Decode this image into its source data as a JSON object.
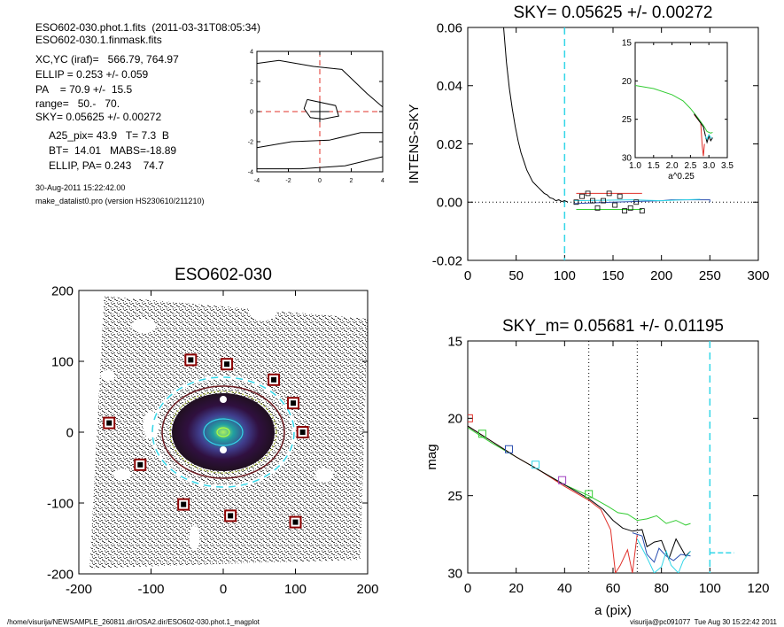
{
  "header": {
    "file_line": "ESO602-030.phot.1.fits  (2011-03-31T08:05:34)",
    "mask_line": "ESO602-030.1.finmask.fits",
    "params": [
      "XC,YC (iraf)=   566.79, 764.97",
      "ELLIP = 0.253 +/- 0.059",
      "PA    = 70.9 +/-  15.5",
      "range=   50.-   70.",
      "SKY= 0.05625 +/- 0.00272"
    ],
    "derived": [
      "A25_pix= 43.9   T= 7.3  B",
      "BT=  14.01   MABS=-18.89",
      "ELLIP, PA= 0.243    74.7"
    ],
    "date": "30-Aug-2011 15:22:42.00",
    "program": "make_datalist0.pro (version HS230610/211210)"
  },
  "footer": {
    "path": "/home/visurija/NEWSAMPLE_260811.dir/OSA2.dir/ESO602-030.phot.1_magplot",
    "user": "visurija@pc091077  Tue Aug 30 15:22:42 2011"
  },
  "colors": {
    "red": "#e0302a",
    "green": "#33cc33",
    "blue": "#2a4fb0",
    "cyan": "#33d6e8",
    "purple": "#a040c0",
    "black": "#000000"
  },
  "chart_data": [
    {
      "id": "contour",
      "type": "scatter",
      "title": "",
      "xlim": [
        -4,
        4
      ],
      "ylim": [
        -4,
        4
      ],
      "xticks": [
        "-4",
        "-2",
        "0",
        "2",
        "4"
      ],
      "yticks": [
        "-4",
        "-2",
        "0",
        "2",
        "4"
      ],
      "contours": [
        [
          [
            -0.8,
            0.8
          ],
          [
            1.0,
            0.4
          ],
          [
            1.2,
            -0.3
          ],
          [
            0.2,
            -0.5
          ],
          [
            -0.6,
            -0.4
          ],
          [
            -1.0,
            0.2
          ],
          [
            -0.8,
            0.8
          ]
        ],
        [
          [
            -4,
            3.2
          ],
          [
            -2.6,
            3.4
          ],
          [
            -0.4,
            3.0
          ],
          [
            1.4,
            2.8
          ],
          [
            3.0,
            1.2
          ],
          [
            4,
            0.3
          ]
        ],
        [
          [
            -4,
            -2.4
          ],
          [
            -1.8,
            -2.0
          ],
          [
            0.6,
            -1.9
          ],
          [
            2.6,
            -1.4
          ],
          [
            4,
            -1.4
          ]
        ],
        [
          [
            -4,
            -3.8
          ],
          [
            -1.2,
            -3.8
          ],
          [
            1.6,
            -3.6
          ],
          [
            4,
            -3.0
          ]
        ]
      ]
    },
    {
      "id": "sky",
      "type": "line",
      "title": "SKY= 0.05625 +/- 0.00272",
      "xlabel": "",
      "ylabel": "INTENS-SKY",
      "xlim": [
        0,
        300
      ],
      "ylim": [
        -0.02,
        0.06
      ],
      "xticks": [
        "0",
        "50",
        "100",
        "150",
        "200",
        "250",
        "300"
      ],
      "yticks": [
        "-0.02",
        "0.00",
        "0.02",
        "0.04",
        "0.06"
      ],
      "profile": [
        [
          37,
          0.06
        ],
        [
          40,
          0.048
        ],
        [
          43,
          0.039
        ],
        [
          46,
          0.032
        ],
        [
          49,
          0.026
        ],
        [
          52,
          0.021
        ],
        [
          55,
          0.017
        ],
        [
          58,
          0.014
        ],
        [
          61,
          0.011
        ],
        [
          64,
          0.009
        ],
        [
          67,
          0.007
        ],
        [
          70,
          0.006
        ],
        [
          73,
          0.005
        ],
        [
          76,
          0.004
        ],
        [
          79,
          0.003
        ],
        [
          82,
          0.0025
        ],
        [
          85,
          0.0015
        ],
        [
          88,
          0.0012
        ],
        [
          91,
          0.0005
        ],
        [
          94,
          0.0008
        ],
        [
          97,
          0.0002
        ],
        [
          100,
          0.0005
        ],
        [
          103,
          0.0001
        ]
      ],
      "points": [
        [
          112,
          0.0
        ],
        [
          118,
          0.002
        ],
        [
          124,
          0.003
        ],
        [
          129,
          0.0005
        ],
        [
          134,
          -0.002
        ],
        [
          140,
          0.0005
        ],
        [
          146,
          0.003
        ],
        [
          152,
          -0.001
        ],
        [
          157,
          0.002
        ],
        [
          162,
          -0.003
        ],
        [
          168,
          -0.002
        ],
        [
          174,
          0.0
        ],
        [
          180,
          -0.003
        ]
      ],
      "sky_vline": 100,
      "inset": {
        "xlabel": "a^0.25",
        "xlim": [
          1.0,
          3.5
        ],
        "ylim": [
          30,
          15
        ],
        "xticks": [
          "1.0",
          "1.5",
          "2.0",
          "2.5",
          "3.0",
          "3.5"
        ],
        "yticks": [
          "15",
          "20",
          "25",
          "30"
        ]
      }
    },
    {
      "id": "image",
      "type": "scatter",
      "title": "ESO602-030",
      "xlim": [
        -200,
        200
      ],
      "ylim": [
        -200,
        200
      ],
      "xticks": [
        "-200",
        "-100",
        "0",
        "100",
        "200"
      ],
      "yticks": [
        "-200",
        "-100",
        "0",
        "100",
        "200"
      ],
      "stars": [
        [
          -45,
          102
        ],
        [
          5,
          96
        ],
        [
          70,
          74
        ],
        [
          97,
          41
        ],
        [
          110,
          0
        ],
        [
          -158,
          13
        ],
        [
          -115,
          -46
        ],
        [
          -55,
          -102
        ],
        [
          10,
          -118
        ],
        [
          100,
          -127
        ]
      ]
    },
    {
      "id": "mag",
      "type": "line",
      "title": "SKY_m=  0.05681 +/- 0.01195",
      "xlabel": "a (pix)",
      "ylabel": "mag",
      "xlim": [
        0,
        120
      ],
      "ylim": [
        30,
        15
      ],
      "xticks": [
        "0",
        "20",
        "40",
        "60",
        "80",
        "100",
        "120"
      ],
      "yticks": [
        "15",
        "20",
        "25",
        "30"
      ],
      "range_lines": [
        50,
        70
      ],
      "sky_vline": 100,
      "markers": [
        {
          "x": 0.5,
          "y": 20.0,
          "color": "red"
        },
        {
          "x": 6,
          "y": 21.0,
          "color": "green"
        },
        {
          "x": 17,
          "y": 22.0,
          "color": "blue"
        },
        {
          "x": 28,
          "y": 23.0,
          "color": "cyan"
        },
        {
          "x": 39,
          "y": 24.0,
          "color": "purple"
        },
        {
          "x": 50,
          "y": 24.9,
          "color": "green"
        }
      ],
      "series": [
        {
          "color": "green",
          "values": [
            [
              0,
              20.6
            ],
            [
              10,
              21.6
            ],
            [
              20,
              22.5
            ],
            [
              30,
              23.4
            ],
            [
              40,
              24.3
            ],
            [
              50,
              25.0
            ],
            [
              58,
              25.7
            ],
            [
              62,
              26.1
            ],
            [
              66,
              26.2
            ],
            [
              70,
              26.6
            ],
            [
              74,
              26.5
            ],
            [
              78,
              26.3
            ],
            [
              82,
              26.8
            ],
            [
              86,
              26.6
            ],
            [
              90,
              26.9
            ],
            [
              92,
              26.8
            ]
          ]
        },
        {
          "color": "red",
          "values": [
            [
              0,
              20.5
            ],
            [
              10,
              21.5
            ],
            [
              20,
              22.5
            ],
            [
              30,
              23.4
            ],
            [
              40,
              24.4
            ],
            [
              50,
              25.3
            ],
            [
              55,
              25.9
            ],
            [
              59,
              27.2
            ],
            [
              61,
              30
            ],
            [
              63,
              29.5
            ],
            [
              66,
              28.5
            ],
            [
              68,
              30
            ],
            [
              70,
              27.5
            ]
          ]
        },
        {
          "color": "black",
          "values": [
            [
              0,
              20.5
            ],
            [
              10,
              21.5
            ],
            [
              20,
              22.5
            ],
            [
              30,
              23.4
            ],
            [
              40,
              24.3
            ],
            [
              50,
              25.2
            ],
            [
              56,
              25.9
            ],
            [
              60,
              26.6
            ],
            [
              64,
              27.1
            ],
            [
              68,
              27.3
            ],
            [
              72,
              27.2
            ],
            [
              74,
              28.3
            ],
            [
              77,
              28.0
            ],
            [
              80,
              27.9
            ],
            [
              83,
              29.1
            ],
            [
              86,
              27.8
            ],
            [
              90,
              28.9
            ],
            [
              92,
              28.6
            ]
          ]
        },
        {
          "color": "blue",
          "values": [
            [
              68,
              27.4
            ],
            [
              72,
              27.6
            ],
            [
              74,
              28.8
            ],
            [
              77,
              29.3
            ],
            [
              79,
              28.4
            ],
            [
              82,
              28.9
            ],
            [
              85,
              29.2
            ],
            [
              88,
              28.8
            ],
            [
              92,
              28.9
            ]
          ]
        },
        {
          "color": "cyan",
          "values": [
            [
              70,
              27.8
            ],
            [
              74,
              29.0
            ],
            [
              77,
              30
            ],
            [
              80,
              29.6
            ],
            [
              82,
              28.6
            ],
            [
              84,
              29.5
            ],
            [
              87,
              30
            ],
            [
              89,
              29.2
            ],
            [
              92,
              28.6
            ]
          ]
        }
      ],
      "sky_level": [
        [
          100,
          28.7
        ],
        [
          110,
          28.7
        ]
      ]
    }
  ]
}
